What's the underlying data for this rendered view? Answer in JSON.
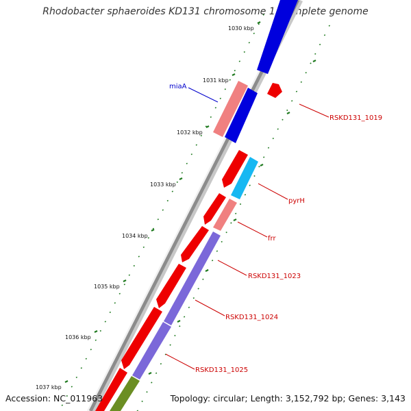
{
  "title": "Rhodobacter sphaeroides KD131 chromosome 1, complete genome",
  "footer": {
    "accession": "Accession: NC_011963",
    "summary": "Topology: circular; Length: 3,152,792 bp; Genes: 3,143"
  },
  "colors": {
    "backbone": "#8c8c8c",
    "tick_mark": "#1f7a1f",
    "label_red": "#cc0000",
    "label_blue": "#0000cc",
    "gene_red": "#ee0000",
    "gene_pink": "#f08080",
    "gene_blue": "#0000dd",
    "gene_cyan": "#17b8f2",
    "gene_purple": "#7b68d9",
    "gene_olive": "#6b8e23"
  },
  "scale_ticks": [
    {
      "label": "1030 kbp"
    },
    {
      "label": "1031 kbp"
    },
    {
      "label": "1032 kbp"
    },
    {
      "label": "1033 kbp"
    },
    {
      "label": "1034 kbp"
    },
    {
      "label": "1035 kbp"
    },
    {
      "label": "1036 kbp"
    },
    {
      "label": "1037 kbp"
    }
  ],
  "gene_labels": [
    {
      "text": "miaA",
      "color": "blue"
    },
    {
      "text": "RSKD131_1019",
      "color": "red"
    },
    {
      "text": "pyrH",
      "color": "red"
    },
    {
      "text": "frr",
      "color": "red"
    },
    {
      "text": "RSKD131_1023",
      "color": "red"
    },
    {
      "text": "RSKD131_1024",
      "color": "red"
    },
    {
      "text": "RSKD131_1025",
      "color": "red"
    }
  ]
}
